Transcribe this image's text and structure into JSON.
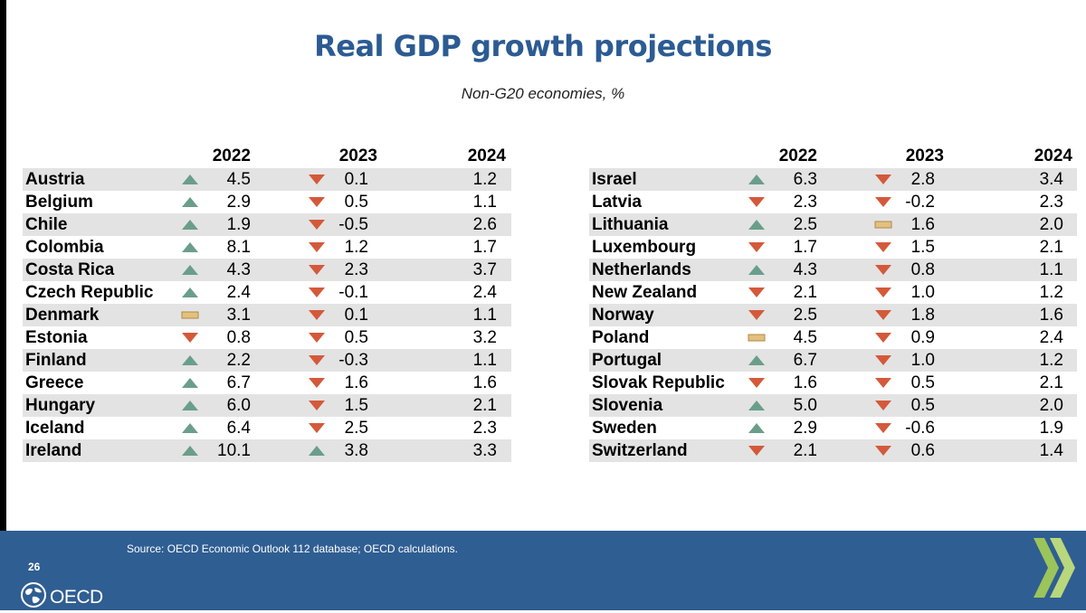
{
  "title": "Real GDP growth projections",
  "subtitle": "Non-G20 economies, %",
  "years": [
    "2022",
    "2023",
    "2024"
  ],
  "colors": {
    "up": "#6a9e8b",
    "down": "#d4593a",
    "flat": "#e3c07f",
    "title": "#2c5b93",
    "footer": "#2f5e92"
  },
  "left_table": {
    "rows": [
      {
        "country": "Austria",
        "v2022": "4.5",
        "t2022": "up",
        "v2023": "0.1",
        "t2023": "down",
        "v2024": "1.2"
      },
      {
        "country": "Belgium",
        "v2022": "2.9",
        "t2022": "up",
        "v2023": "0.5",
        "t2023": "down",
        "v2024": "1.1"
      },
      {
        "country": "Chile",
        "v2022": "1.9",
        "t2022": "up",
        "v2023": "-0.5",
        "t2023": "down",
        "v2024": "2.6"
      },
      {
        "country": "Colombia",
        "v2022": "8.1",
        "t2022": "up",
        "v2023": "1.2",
        "t2023": "down",
        "v2024": "1.7"
      },
      {
        "country": "Costa Rica",
        "v2022": "4.3",
        "t2022": "up",
        "v2023": "2.3",
        "t2023": "down",
        "v2024": "3.7"
      },
      {
        "country": "Czech Republic",
        "v2022": "2.4",
        "t2022": "up",
        "v2023": "-0.1",
        "t2023": "down",
        "v2024": "2.4"
      },
      {
        "country": "Denmark",
        "v2022": "3.1",
        "t2022": "flat",
        "v2023": "0.1",
        "t2023": "down",
        "v2024": "1.1"
      },
      {
        "country": "Estonia",
        "v2022": "0.8",
        "t2022": "down",
        "v2023": "0.5",
        "t2023": "down",
        "v2024": "3.2"
      },
      {
        "country": "Finland",
        "v2022": "2.2",
        "t2022": "up",
        "v2023": "-0.3",
        "t2023": "down",
        "v2024": "1.1"
      },
      {
        "country": "Greece",
        "v2022": "6.7",
        "t2022": "up",
        "v2023": "1.6",
        "t2023": "down",
        "v2024": "1.6"
      },
      {
        "country": "Hungary",
        "v2022": "6.0",
        "t2022": "up",
        "v2023": "1.5",
        "t2023": "down",
        "v2024": "2.1"
      },
      {
        "country": "Iceland",
        "v2022": "6.4",
        "t2022": "up",
        "v2023": "2.5",
        "t2023": "down",
        "v2024": "2.3"
      },
      {
        "country": "Ireland",
        "v2022": "10.1",
        "t2022": "up",
        "v2023": "3.8",
        "t2023": "up",
        "v2024": "3.3"
      }
    ]
  },
  "right_table": {
    "rows": [
      {
        "country": "Israel",
        "v2022": "6.3",
        "t2022": "up",
        "v2023": "2.8",
        "t2023": "down",
        "v2024": "3.4"
      },
      {
        "country": "Latvia",
        "v2022": "2.3",
        "t2022": "down",
        "v2023": "-0.2",
        "t2023": "down",
        "v2024": "2.3"
      },
      {
        "country": "Lithuania",
        "v2022": "2.5",
        "t2022": "up",
        "v2023": "1.6",
        "t2023": "flat",
        "v2024": "2.0"
      },
      {
        "country": "Luxembourg",
        "v2022": "1.7",
        "t2022": "down",
        "v2023": "1.5",
        "t2023": "down",
        "v2024": "2.1"
      },
      {
        "country": "Netherlands",
        "v2022": "4.3",
        "t2022": "up",
        "v2023": "0.8",
        "t2023": "down",
        "v2024": "1.1"
      },
      {
        "country": "New Zealand",
        "v2022": "2.1",
        "t2022": "down",
        "v2023": "1.0",
        "t2023": "down",
        "v2024": "1.2"
      },
      {
        "country": "Norway",
        "v2022": "2.5",
        "t2022": "down",
        "v2023": "1.8",
        "t2023": "down",
        "v2024": "1.6"
      },
      {
        "country": "Poland",
        "v2022": "4.5",
        "t2022": "flat",
        "v2023": "0.9",
        "t2023": "down",
        "v2024": "2.4"
      },
      {
        "country": "Portugal",
        "v2022": "6.7",
        "t2022": "up",
        "v2023": "1.0",
        "t2023": "down",
        "v2024": "1.2"
      },
      {
        "country": "Slovak Republic",
        "v2022": "1.6",
        "t2022": "down",
        "v2023": "0.5",
        "t2023": "down",
        "v2024": "2.1"
      },
      {
        "country": "Slovenia",
        "v2022": "5.0",
        "t2022": "up",
        "v2023": "0.5",
        "t2023": "down",
        "v2024": "2.0"
      },
      {
        "country": "Sweden",
        "v2022": "2.9",
        "t2022": "up",
        "v2023": "-0.6",
        "t2023": "down",
        "v2024": "1.9"
      },
      {
        "country": "Switzerland",
        "v2022": "2.1",
        "t2022": "down",
        "v2023": "0.6",
        "t2023": "down",
        "v2024": "1.4"
      }
    ]
  },
  "footer": {
    "source": "Source: OECD Economic Outlook 112 database; OECD calculations.",
    "page_number": "26",
    "logo_text": "OECD",
    "logo_icon": "globe-icon",
    "decoration_icon": "double-chevron-icon"
  }
}
